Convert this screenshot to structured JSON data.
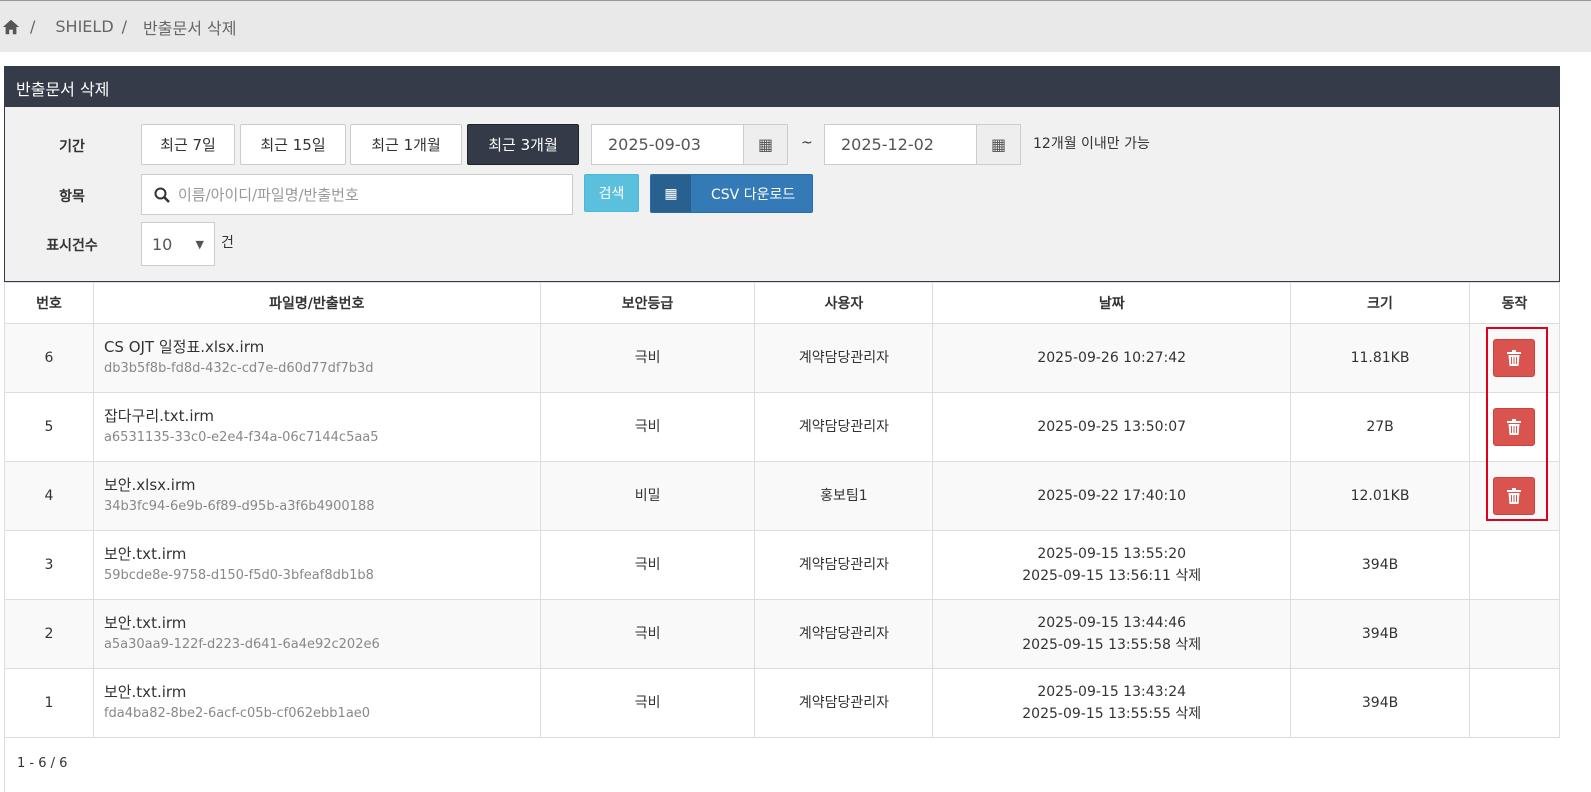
{
  "breadcrumb": {
    "home_icon": "home-icon",
    "items": [
      "SHIELD",
      "반출문서 삭제"
    ]
  },
  "panel": {
    "title": "반출문서 삭제"
  },
  "filter": {
    "period_label": "기간",
    "period_buttons": [
      "최근 7일",
      "최근 15일",
      "최근 1개월",
      "최근 3개월"
    ],
    "active_period": "최근 3개월",
    "start_date": "2025-09-03",
    "separator": "~",
    "end_date": "2025-12-02",
    "date_note": "12개월 이내만 가능",
    "item_label": "항목",
    "search_placeholder": "이름/아이디/파일명/반출번호",
    "search_button": "검색",
    "csv_button": "CSV 다운로드",
    "count_label": "표시건수",
    "count_value": "10",
    "count_unit": "건"
  },
  "table": {
    "headers": [
      "번호",
      "파일명/반출번호",
      "보안등급",
      "사용자",
      "날짜",
      "크기",
      "동작"
    ],
    "rows": [
      {
        "no": "6",
        "file": "CS OJT 일정표.xlsx.irm",
        "id": "db3b5f8b-fd8d-432c-cd7e-d60d77df7b3d",
        "grade": "극비",
        "user": "계약담당관리자",
        "date": "2025-09-26 10:27:42",
        "deleted": "",
        "size": "11.81KB",
        "action": "delete"
      },
      {
        "no": "5",
        "file": "잡다구리.txt.irm",
        "id": "a6531135-33c0-e2e4-f34a-06c7144c5aa5",
        "grade": "극비",
        "user": "계약담당관리자",
        "date": "2025-09-25 13:50:07",
        "deleted": "",
        "size": "27B",
        "action": "delete"
      },
      {
        "no": "4",
        "file": "보안.xlsx.irm",
        "id": "34b3fc94-6e9b-6f89-d95b-a3f6b4900188",
        "grade": "비밀",
        "user": "홍보팀1",
        "date": "2025-09-22 17:40:10",
        "deleted": "",
        "size": "12.01KB",
        "action": "delete"
      },
      {
        "no": "3",
        "file": "보안.txt.irm",
        "id": "59bcde8e-9758-d150-f5d0-3bfeaf8db1b8",
        "grade": "극비",
        "user": "계약담당관리자",
        "date": "2025-09-15 13:55:20",
        "deleted": "2025-09-15 13:56:11 삭제",
        "size": "394B",
        "action": ""
      },
      {
        "no": "2",
        "file": "보안.txt.irm",
        "id": "a5a30aa9-122f-d223-d641-6a4e92c202e6",
        "grade": "극비",
        "user": "계약담당관리자",
        "date": "2025-09-15 13:44:46",
        "deleted": "2025-09-15 13:55:58 삭제",
        "size": "394B",
        "action": ""
      },
      {
        "no": "1",
        "file": "보안.txt.irm",
        "id": "fda4ba82-8be2-6acf-c05b-cf062ebb1ae0",
        "grade": "극비",
        "user": "계약담당관리자",
        "date": "2025-09-15 13:43:24",
        "deleted": "2025-09-15 13:55:55 삭제",
        "size": "394B",
        "action": ""
      }
    ]
  },
  "pagination": {
    "summary": "1 - 6 / 6"
  },
  "colors": {
    "header": "#353b49",
    "delete": "#d9534f",
    "search": "#5bc0de",
    "csv": "#337ab7",
    "highlight": "#e0001b"
  }
}
